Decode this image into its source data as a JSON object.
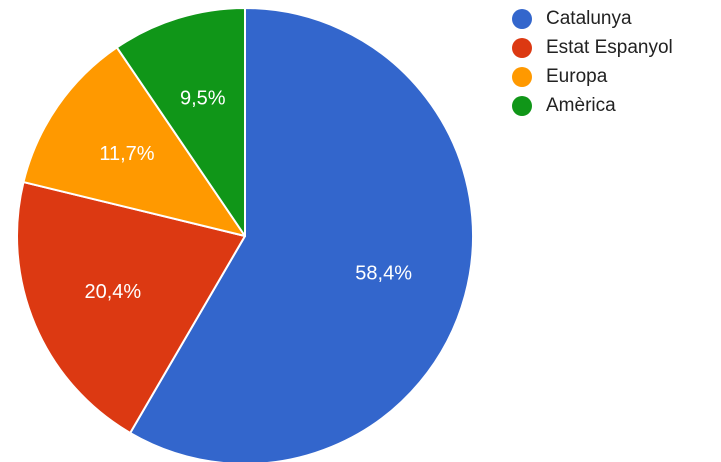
{
  "chart_data": {
    "type": "pie",
    "categories": [
      "Catalunya",
      "Estat Espanyol",
      "Europa",
      "Amèrica"
    ],
    "values": [
      58.4,
      20.4,
      11.7,
      9.5
    ],
    "value_labels": [
      "58,4%",
      "20,4%",
      "11,7%",
      "9,5%"
    ],
    "colors": [
      "#3366cc",
      "#dc3912",
      "#ff9900",
      "#109618"
    ],
    "legend_position": "right",
    "title": ""
  }
}
